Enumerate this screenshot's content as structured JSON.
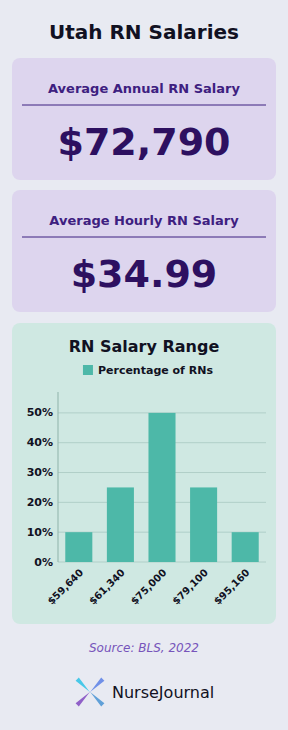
{
  "chart_data": {
    "type": "bar",
    "title": "Utah RN Salaries",
    "subtitle": "RN Salary Range",
    "annotations": [
      "Average Annual RN Salary",
      "$72,790",
      "Average Hourly RN Salary",
      "$34.99",
      "Source: BLS, 2022",
      "NurseJournal"
    ],
    "categories": [
      "$59,640",
      "$61,340",
      "$75,000",
      "$79,100",
      "$95,160"
    ],
    "series": [
      {
        "name": "Percentage of RNs",
        "color": "#4db8a8",
        "values": [
          10,
          25,
          50,
          25,
          10
        ]
      }
    ],
    "ylim": [
      0,
      57
    ],
    "yticks": [
      {
        "value": 0,
        "label": "0%"
      },
      {
        "value": 10,
        "label": "10%"
      },
      {
        "value": 20,
        "label": "20%"
      },
      {
        "value": 30,
        "label": "30%"
      },
      {
        "value": 40,
        "label": "40%"
      },
      {
        "value": 50,
        "label": "50%"
      }
    ],
    "grid": true,
    "legend": "top"
  }
}
